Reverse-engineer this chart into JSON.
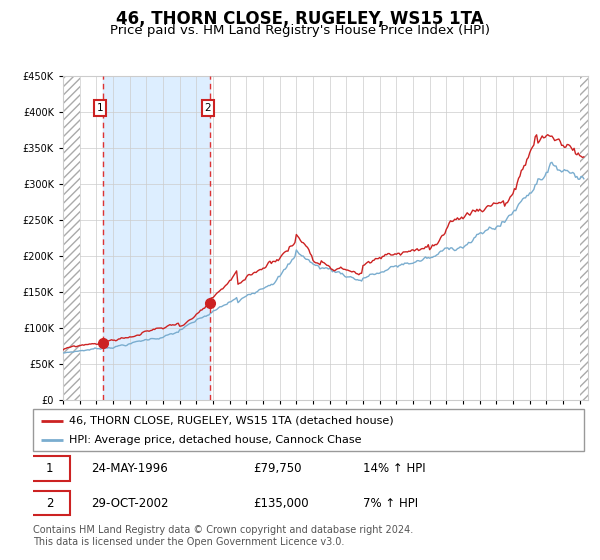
{
  "title": "46, THORN CLOSE, RUGELEY, WS15 1TA",
  "subtitle": "Price paid vs. HM Land Registry's House Price Index (HPI)",
  "legend_line1": "46, THORN CLOSE, RUGELEY, WS15 1TA (detached house)",
  "legend_line2": "HPI: Average price, detached house, Cannock Chase",
  "footnote": "Contains HM Land Registry data © Crown copyright and database right 2024.\nThis data is licensed under the Open Government Licence v3.0.",
  "sale1_date": "24-MAY-1996",
  "sale1_price": "£79,750",
  "sale1_hpi": "14% ↑ HPI",
  "sale2_date": "29-OCT-2002",
  "sale2_price": "£135,000",
  "sale2_hpi": "7% ↑ HPI",
  "sale1_x": 1996.38,
  "sale2_x": 2002.83,
  "red_line_color": "#cc2222",
  "blue_line_color": "#7aadcf",
  "hatch_color": "#aaaaaa",
  "shade_color": "#ddeeff",
  "grid_color": "#cccccc",
  "dashed_color": "#dd3333",
  "box_edge_color": "#cc2222",
  "ylim_min": 0,
  "ylim_max": 450000,
  "xlim_min": 1994.0,
  "xlim_max": 2025.5,
  "hatch_left_end": 1995.0,
  "hatch_right_start": 2025.0,
  "title_fontsize": 12,
  "subtitle_fontsize": 9.5,
  "tick_fontsize": 7,
  "legend_fontsize": 8,
  "table_fontsize": 8.5,
  "footnote_fontsize": 7
}
